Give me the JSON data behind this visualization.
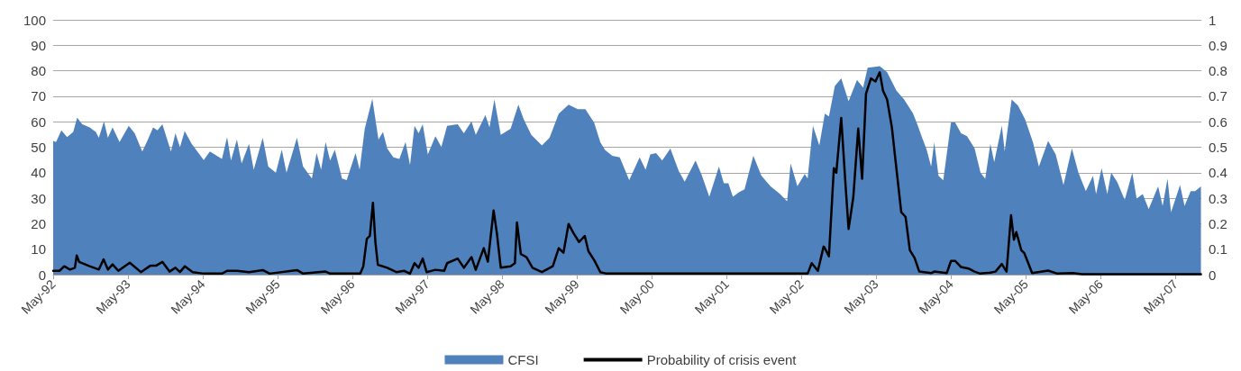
{
  "chart_data": {
    "type": "area",
    "xlim": [
      "1992-05-01",
      "2007-09-05"
    ],
    "xticks": [
      {
        "value": "1992-05-01",
        "label": "May-92"
      },
      {
        "value": "1993-05-01",
        "label": "May-93"
      },
      {
        "value": "1994-05-01",
        "label": "May-94"
      },
      {
        "value": "1995-05-01",
        "label": "May-95"
      },
      {
        "value": "1996-05-01",
        "label": "May-96"
      },
      {
        "value": "1997-05-01",
        "label": "May-97"
      },
      {
        "value": "1998-05-01",
        "label": "May-98"
      },
      {
        "value": "1999-05-01",
        "label": "May-99"
      },
      {
        "value": "2000-05-01",
        "label": "May-00"
      },
      {
        "value": "2001-05-01",
        "label": "May-01"
      },
      {
        "value": "2002-05-01",
        "label": "May-02"
      },
      {
        "value": "2003-05-01",
        "label": "May-03"
      },
      {
        "value": "2004-05-01",
        "label": "May-04"
      },
      {
        "value": "2005-05-01",
        "label": "May-05"
      },
      {
        "value": "2006-05-01",
        "label": "May-06"
      },
      {
        "value": "2007-05-01",
        "label": "May-07"
      }
    ],
    "ylim": [
      0,
      100
    ],
    "yticks": [
      0,
      10,
      20,
      30,
      40,
      50,
      60,
      70,
      80,
      90,
      100
    ],
    "y2lim": [
      0,
      1
    ],
    "y2ticks": [
      0,
      0.1,
      0.2,
      0.3,
      0.4,
      0.5,
      0.6,
      0.7,
      0.8,
      0.9,
      1
    ],
    "grid": "y",
    "legend": "bottom",
    "marker": "none",
    "series": [
      {
        "name": "CFSI",
        "color": "#4f81bd",
        "x": [
          "1992-05-01",
          "1992-05-15",
          "1992-06-10",
          "1992-07-08",
          "1992-08-07",
          "1992-08-26",
          "1992-09-20",
          "1992-10-26",
          "1992-11-25",
          "1992-12-10",
          "1993-01-04",
          "1993-01-23",
          "1993-02-15",
          "1993-03-21",
          "1993-05-05",
          "1993-06-03",
          "1993-07-10",
          "1993-08-01",
          "1993-09-01",
          "1993-09-22",
          "1993-10-16",
          "1993-11-05",
          "1993-11-27",
          "1993-12-19",
          "1994-01-10",
          "1994-02-02",
          "1994-03-08",
          "1994-05-06",
          "1994-06-05",
          "1994-08-03",
          "1994-08-28",
          "1994-09-16",
          "1994-10-15",
          "1994-11-07",
          "1994-12-13",
          "1995-01-05",
          "1995-02-18",
          "1995-03-17",
          "1995-04-23",
          "1995-05-22",
          "1995-06-14",
          "1995-08-04",
          "1995-09-03",
          "1995-10-16",
          "1995-11-08",
          "1995-11-30",
          "1995-12-22",
          "1996-01-13",
          "1996-02-05",
          "1996-03-11",
          "1996-04-03",
          "1996-05-16",
          "1996-06-05",
          "1996-06-30",
          "1996-08-06",
          "1996-09-05",
          "1996-09-27",
          "1996-10-18",
          "1996-11-17",
          "1996-12-16",
          "1997-01-15",
          "1997-02-06",
          "1997-02-28",
          "1997-03-20",
          "1997-04-09",
          "1997-05-04",
          "1997-06-10",
          "1997-07-09",
          "1997-08-06",
          "1997-09-27",
          "1997-10-27",
          "1997-12-03",
          "1997-12-24",
          "1998-02-09",
          "1998-03-01",
          "1998-03-25",
          "1998-04-25",
          "1998-06-12",
          "1998-07-20",
          "1998-08-16",
          "1998-09-21",
          "1998-11-12",
          "1998-12-19",
          "1999-02-02",
          "1999-03-22",
          "1999-05-06",
          "1999-06-12",
          "1999-07-25",
          "1999-08-24",
          "1999-09-16",
          "1999-10-21",
          "1999-11-27",
          "2000-01-12",
          "2000-03-03",
          "2000-04-01",
          "2000-04-24",
          "2000-05-22",
          "2000-06-21",
          "2000-07-31",
          "2000-09-10",
          "2000-10-09",
          "2000-12-01",
          "2001-01-01",
          "2001-02-06",
          "2001-03-25",
          "2001-04-18",
          "2001-05-10",
          "2001-06-01",
          "2001-07-01",
          "2001-07-28",
          "2001-09-09",
          "2001-10-18",
          "2001-12-01",
          "2002-01-15",
          "2002-02-21",
          "2002-03-10",
          "2002-04-12",
          "2002-05-18",
          "2002-06-01",
          "2002-06-27",
          "2002-07-28",
          "2002-08-24",
          "2002-09-13",
          "2002-10-12",
          "2002-11-12",
          "2002-12-18",
          "2003-01-28",
          "2003-02-27",
          "2003-03-21",
          "2003-05-19",
          "2003-06-24",
          "2003-08-09",
          "2003-09-15",
          "2003-10-28",
          "2003-11-18",
          "2003-12-12",
          "2004-01-03",
          "2004-01-25",
          "2004-02-09",
          "2004-03-01",
          "2004-03-24",
          "2004-05-01",
          "2004-05-21",
          "2004-06-19",
          "2004-07-18",
          "2004-08-24",
          "2004-09-22",
          "2004-10-15",
          "2004-11-09",
          "2004-11-28",
          "2005-01-04",
          "2005-01-18",
          "2005-02-21",
          "2005-03-24",
          "2005-04-28",
          "2005-06-05",
          "2005-07-04",
          "2005-08-18",
          "2005-09-24",
          "2005-11-01",
          "2005-12-12",
          "2006-01-13",
          "2006-02-18",
          "2006-03-25",
          "2006-04-09",
          "2006-05-06",
          "2006-06-03",
          "2006-06-22",
          "2006-07-21",
          "2006-08-27",
          "2006-10-03",
          "2006-10-24",
          "2006-11-23",
          "2006-12-22",
          "2007-02-06",
          "2007-02-28",
          "2007-03-24",
          "2007-04-10",
          "2007-05-24",
          "2007-06-15",
          "2007-07-15",
          "2007-08-06",
          "2007-09-03"
        ],
        "values": [
          52.5,
          52,
          56.6,
          54,
          56,
          61.6,
          59,
          57.8,
          56,
          53.7,
          60.2,
          53.7,
          57.8,
          52,
          58.4,
          55.5,
          48.3,
          52,
          57.8,
          56.6,
          59,
          54,
          48.3,
          55.5,
          50,
          56.4,
          51.3,
          45,
          48.3,
          45.4,
          54,
          44.8,
          53,
          43.6,
          51.3,
          41.2,
          53.7,
          42.4,
          40,
          49,
          40,
          53.7,
          42.4,
          37.7,
          47.7,
          41.2,
          52,
          44.8,
          49,
          37.7,
          37.1,
          47.7,
          41.2,
          57.2,
          69,
          53,
          56,
          49.5,
          46,
          45.4,
          52,
          43,
          58.4,
          55.5,
          59,
          47.2,
          54.3,
          50.1,
          58.4,
          59,
          55.5,
          60.2,
          54.9,
          62.6,
          57.8,
          68.7,
          54.9,
          57.2,
          66.7,
          60.8,
          54.9,
          50.7,
          53.7,
          63.2,
          66.7,
          64.9,
          64.9,
          59.6,
          51.9,
          48.9,
          46.6,
          46,
          37.1,
          46,
          41.2,
          47.2,
          47.7,
          44.8,
          49.5,
          40.6,
          36.5,
          44.8,
          38.9,
          30.6,
          42.4,
          35.9,
          35.9,
          30.6,
          32.3,
          33.5,
          46.6,
          38.9,
          34.7,
          31.8,
          28.8,
          43.6,
          34.7,
          39.5,
          37.7,
          58.4,
          50.7,
          63.2,
          62.1,
          74,
          77,
          68,
          76.4,
          73.4,
          81.2,
          81.8,
          79.4,
          72.2,
          68.7,
          63.3,
          59.1,
          53.7,
          49,
          42.4,
          51.9,
          38.8,
          37,
          59.7,
          59.7,
          55.5,
          54.3,
          49.6,
          40,
          37.6,
          51.3,
          44.2,
          58.5,
          48.4,
          68.7,
          66.3,
          60.9,
          51.9,
          42.4,
          52.5,
          47.2,
          35.2,
          49.6,
          40,
          32.8,
          38.8,
          31.6,
          41.8,
          31.6,
          40,
          36.4,
          29.3,
          40,
          29.9,
          31.6,
          25.7,
          34.6,
          26.9,
          37.6,
          24.5,
          35.2,
          26.9,
          32.8,
          32.8,
          34.6
        ]
      },
      {
        "name": "Probability of crisis event",
        "type": "line",
        "axis": "y2",
        "color": "#000000",
        "x": [
          "1992-05-01",
          "1992-06-01",
          "1992-06-24",
          "1992-07-22",
          "1992-08-15",
          "1992-08-24",
          "1992-09-05",
          "1992-10-26",
          "1992-12-10",
          "1993-01-02",
          "1993-01-23",
          "1993-02-15",
          "1993-03-15",
          "1993-05-10",
          "1993-07-03",
          "1993-08-18",
          "1993-09-15",
          "1993-10-16",
          "1993-11-20",
          "1993-12-19",
          "1994-01-10",
          "1994-02-03",
          "1994-03-13",
          "1994-05-06",
          "1994-08-03",
          "1994-08-28",
          "1994-10-15",
          "1994-12-13",
          "1995-02-18",
          "1995-03-24",
          "1995-08-04",
          "1995-09-03",
          "1995-12-22",
          "1996-01-13",
          "1996-06-08",
          "1996-06-23",
          "1996-07-10",
          "1996-07-25",
          "1996-08-09",
          "1996-08-21",
          "1996-09-02",
          "1996-10-18",
          "1996-12-01",
          "1997-01-08",
          "1997-02-06",
          "1997-02-28",
          "1997-03-20",
          "1997-04-09",
          "1997-04-28",
          "1997-06-10",
          "1997-07-23",
          "1997-08-06",
          "1997-09-27",
          "1997-10-27",
          "1997-12-03",
          "1997-12-24",
          "1998-02-01",
          "1998-02-21",
          "1998-03-21",
          "1998-04-06",
          "1998-04-25",
          "1998-06-12",
          "1998-07-03",
          "1998-07-13",
          "1998-08-01",
          "1998-08-28",
          "1998-09-27",
          "1998-11-12",
          "1999-01-04",
          "1999-02-02",
          "1999-02-25",
          "1999-03-22",
          "1999-04-15",
          "1999-05-12",
          "1999-06-09",
          "1999-06-27",
          "1999-07-25",
          "1999-08-24",
          "1999-09-24",
          "2000-08-27",
          "2002-06-01",
          "2002-06-21",
          "2002-07-21",
          "2002-08-18",
          "2002-08-22",
          "2002-09-13",
          "2002-10-07",
          "2002-10-19",
          "2002-11-12",
          "2002-12-04",
          "2002-12-18",
          "2003-01-10",
          "2003-02-03",
          "2003-02-22",
          "2003-03-13",
          "2003-04-06",
          "2003-04-28",
          "2003-05-19",
          "2003-06-04",
          "2003-06-24",
          "2003-07-17",
          "2003-08-09",
          "2003-09-01",
          "2003-09-22",
          "2003-10-13",
          "2003-11-05",
          "2003-11-28",
          "2004-01-25",
          "2004-02-09",
          "2004-04-10",
          "2004-05-01",
          "2004-05-21",
          "2004-06-19",
          "2004-07-25",
          "2004-08-24",
          "2004-09-20",
          "2004-11-09",
          "2004-12-04",
          "2005-01-04",
          "2005-01-27",
          "2005-02-18",
          "2005-03-04",
          "2005-03-16",
          "2005-04-09",
          "2005-04-24",
          "2005-06-01",
          "2005-08-18",
          "2005-10-02",
          "2005-12-16",
          "2006-02-01",
          "2007-09-03"
        ],
        "values": [
          0.015,
          0.015,
          0.033,
          0.02,
          0.027,
          0.075,
          0.05,
          0.033,
          0.02,
          0.06,
          0.02,
          0.04,
          0.015,
          0.047,
          0.01,
          0.035,
          0.035,
          0.05,
          0.012,
          0.027,
          0.01,
          0.033,
          0.01,
          0.004,
          0.004,
          0.015,
          0.015,
          0.01,
          0.018,
          0.004,
          0.018,
          0.004,
          0.012,
          0.004,
          0.004,
          0.033,
          0.14,
          0.152,
          0.282,
          0.128,
          0.039,
          0.027,
          0.01,
          0.015,
          0.004,
          0.045,
          0.027,
          0.063,
          0.01,
          0.019,
          0.015,
          0.045,
          0.063,
          0.027,
          0.069,
          0.019,
          0.104,
          0.051,
          0.252,
          0.163,
          0.027,
          0.033,
          0.045,
          0.205,
          0.081,
          0.069,
          0.027,
          0.01,
          0.033,
          0.104,
          0.086,
          0.199,
          0.163,
          0.128,
          0.152,
          0.092,
          0.057,
          0.01,
          0.004,
          0.004,
          0.004,
          0.045,
          0.015,
          0.11,
          0.107,
          0.072,
          0.418,
          0.4,
          0.615,
          0.34,
          0.179,
          0.304,
          0.573,
          0.376,
          0.71,
          0.77,
          0.758,
          0.794,
          0.722,
          0.687,
          0.579,
          0.412,
          0.245,
          0.227,
          0.096,
          0.066,
          0.012,
          0.006,
          0.012,
          0.006,
          0.054,
          0.054,
          0.03,
          0.024,
          0.012,
          0.004,
          0.008,
          0.012,
          0.042,
          0.012,
          0.233,
          0.137,
          0.167,
          0.096,
          0.084,
          0.006,
          0.016,
          0.004,
          0.006,
          0.002,
          0.002
        ]
      }
    ]
  }
}
